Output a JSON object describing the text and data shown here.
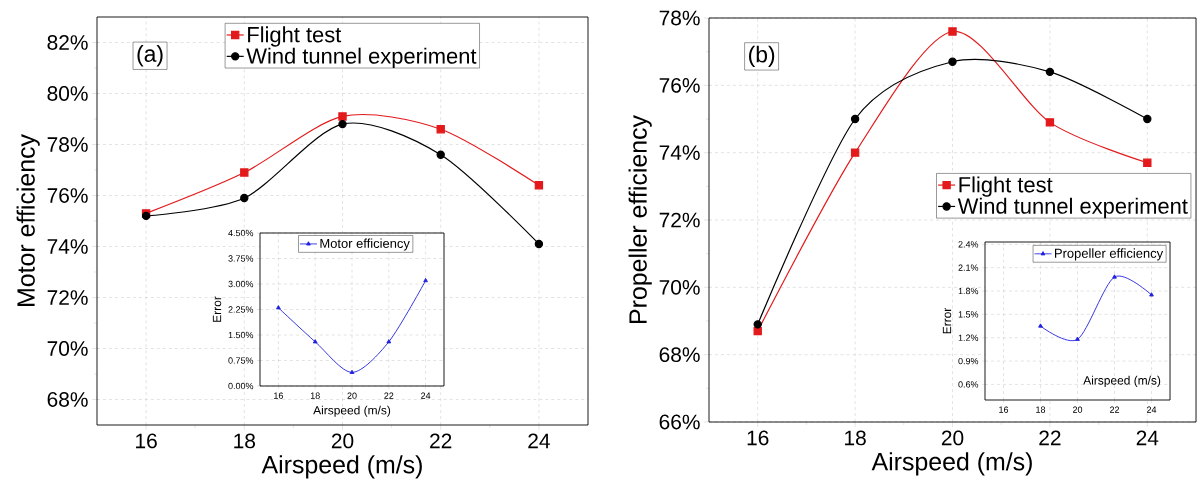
{
  "chart_data": [
    {
      "type": "line",
      "xlabel": "Airspeed (m/s)",
      "ylabel": "Motor efficiency",
      "annotations": [
        "(a)"
      ],
      "x": [
        16,
        18,
        20,
        22,
        24
      ],
      "xlim": [
        15,
        25
      ],
      "xticks": [
        16,
        18,
        20,
        22,
        24
      ],
      "ylim": [
        67,
        83
      ],
      "yticks": [
        {
          "value": 68,
          "label": "68%"
        },
        {
          "value": 70,
          "label": "70%"
        },
        {
          "value": 72,
          "label": "72%"
        },
        {
          "value": 74,
          "label": "74%"
        },
        {
          "value": 76,
          "label": "76%"
        },
        {
          "value": 78,
          "label": "78%"
        },
        {
          "value": 80,
          "label": "80%"
        },
        {
          "value": 82,
          "label": "82%"
        }
      ],
      "grid": true,
      "legend": "top",
      "series": [
        {
          "name": "Flight test",
          "color": "#e31a1c",
          "marker": "square",
          "values": [
            75.3,
            76.9,
            79.1,
            78.6,
            76.4
          ]
        },
        {
          "name": "Wind tunnel experiment",
          "color": "#000000",
          "marker": "circle",
          "values": [
            75.2,
            75.9,
            78.8,
            77.6,
            74.1
          ]
        }
      ]
    },
    {
      "type": "line",
      "xlabel": "Airspeed (m/s)",
      "ylabel": "Error",
      "x": [
        16,
        18,
        20,
        22,
        24
      ],
      "xlim": [
        15,
        25
      ],
      "xticks": [
        16,
        18,
        20,
        22,
        24
      ],
      "ylim": [
        0,
        4.5
      ],
      "yticks": [
        {
          "value": 0,
          "label": "0.00%"
        },
        {
          "value": 0.75,
          "label": "0.75%"
        },
        {
          "value": 1.5,
          "label": "1.50%"
        },
        {
          "value": 2.25,
          "label": "2.25%"
        },
        {
          "value": 3,
          "label": "3.00%"
        },
        {
          "value": 3.75,
          "label": "3.75%"
        },
        {
          "value": 4.5,
          "label": "4.50%"
        }
      ],
      "grid": true,
      "legend": "top",
      "series": [
        {
          "name": "Motor efficiency",
          "color": "#2020e0",
          "marker": "triangle",
          "values": [
            2.3,
            1.3,
            0.4,
            1.3,
            3.1
          ]
        }
      ]
    },
    {
      "type": "line",
      "xlabel": "Airspeed (m/s)",
      "ylabel": "Propeller efficiency",
      "annotations": [
        "(b)"
      ],
      "x": [
        16,
        18,
        20,
        22,
        24
      ],
      "xlim": [
        15,
        25
      ],
      "xticks": [
        16,
        18,
        20,
        22,
        24
      ],
      "ylim": [
        66,
        78
      ],
      "yticks": [
        {
          "value": 66,
          "label": "66%"
        },
        {
          "value": 68,
          "label": "68%"
        },
        {
          "value": 70,
          "label": "70%"
        },
        {
          "value": 72,
          "label": "72%"
        },
        {
          "value": 74,
          "label": "74%"
        },
        {
          "value": 76,
          "label": "76%"
        },
        {
          "value": 78,
          "label": "78%"
        }
      ],
      "grid": true,
      "legend": "right",
      "series": [
        {
          "name": "Flight test",
          "color": "#e31a1c",
          "marker": "square",
          "values": [
            68.7,
            74.0,
            77.6,
            74.9,
            73.7
          ]
        },
        {
          "name": "Wind tunnel experiment",
          "color": "#000000",
          "marker": "circle",
          "values": [
            68.9,
            75.0,
            76.7,
            76.4,
            75.0
          ]
        }
      ]
    },
    {
      "type": "line",
      "xlabel": "Airspeed (m/s)",
      "ylabel": "Error",
      "x": [
        18,
        20,
        22,
        24
      ],
      "xlim": [
        15,
        25
      ],
      "xticks": [
        16,
        18,
        20,
        22,
        24
      ],
      "ylim": [
        0.4,
        2.43
      ],
      "yticks": [
        {
          "value": 0.6,
          "label": "0.6%"
        },
        {
          "value": 0.9,
          "label": "0.9%"
        },
        {
          "value": 1.2,
          "label": "1.2%"
        },
        {
          "value": 1.5,
          "label": "1.5%"
        },
        {
          "value": 1.8,
          "label": "1.8%"
        },
        {
          "value": 2.1,
          "label": "2.1%"
        },
        {
          "value": 2.4,
          "label": "2.4%"
        }
      ],
      "grid": true,
      "legend": "top right",
      "series": [
        {
          "name": "Propeller efficiency",
          "color": "#2020e0",
          "marker": "triangle",
          "values": [
            1.35,
            1.18,
            1.98,
            1.75
          ]
        }
      ]
    }
  ]
}
